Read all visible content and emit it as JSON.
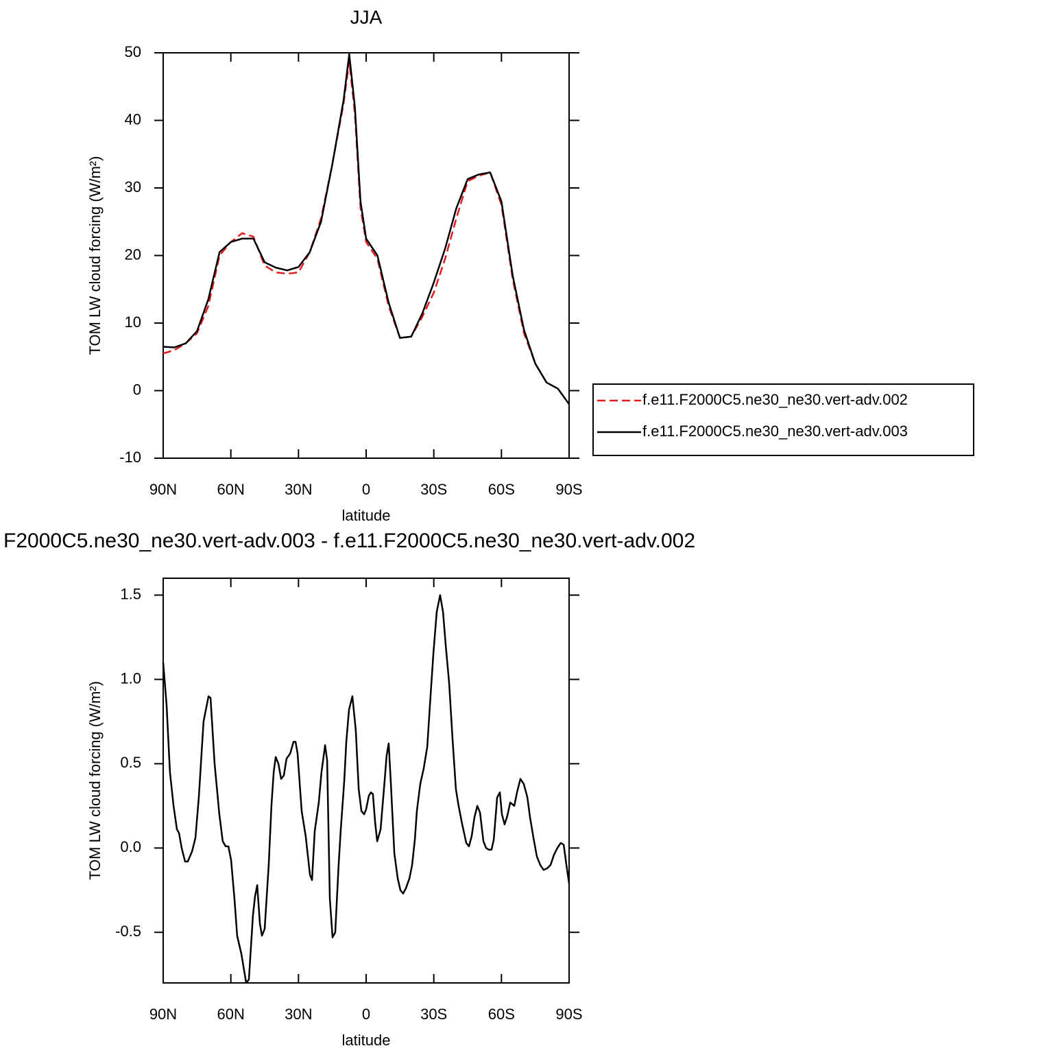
{
  "chart_data": [
    {
      "type": "line",
      "title": "JJA",
      "xlabel": "latitude",
      "ylabel": "TOM LW cloud forcing (W/m²)",
      "x": [
        90,
        85,
        80,
        75,
        70,
        65,
        60,
        55,
        50,
        45,
        40,
        35,
        30,
        25,
        20,
        15,
        10,
        7.5,
        5,
        2.5,
        0,
        -5,
        -10,
        -15,
        -20,
        -25,
        -30,
        -35,
        -40,
        -45,
        -50,
        -55,
        -60,
        -65,
        -70,
        -75,
        -80,
        -85,
        -90
      ],
      "xlim": [
        90,
        -90
      ],
      "xticks": [
        {
          "value": 90,
          "label": "90N"
        },
        {
          "value": 60,
          "label": "60N"
        },
        {
          "value": 30,
          "label": "30N"
        },
        0,
        {
          "value": -30,
          "label": "30S"
        },
        {
          "value": -60,
          "label": "60S"
        },
        {
          "value": -90,
          "label": "90S"
        }
      ],
      "ylim": [
        -10,
        50
      ],
      "yticks": [
        -10,
        0,
        10,
        20,
        30,
        40,
        50
      ],
      "legend": "right",
      "series": [
        {
          "name": "f.e11.F2000C5.ne30_ne30.vert-adv.002",
          "color": "#e41a1c",
          "dash": true,
          "values": [
            5.5,
            6.0,
            7.0,
            8.5,
            12.5,
            20,
            22,
            23.3,
            22.8,
            18.5,
            17.5,
            17.3,
            17.5,
            20.5,
            25.5,
            33.5,
            42.5,
            48.8,
            41,
            27,
            22,
            19.5,
            12.5,
            7.8,
            8,
            11,
            14.5,
            19.5,
            25.5,
            31,
            31.8,
            32.3,
            27.5,
            16.5,
            8.5,
            4,
            1.2,
            0.3,
            -2
          ]
        },
        {
          "name": "f.e11.F2000C5.ne30_ne30.vert-adv.003",
          "color": "#000000",
          "dash": false,
          "values": [
            6.5,
            6.4,
            7.0,
            8.8,
            13.5,
            20.5,
            22,
            22.5,
            22.5,
            19,
            18.2,
            17.8,
            18.3,
            20.5,
            25,
            33.5,
            43,
            49.8,
            42,
            28,
            22.5,
            20,
            13,
            7.8,
            8,
            11.5,
            16,
            21,
            27,
            31.3,
            32,
            32.3,
            28,
            17,
            9,
            4,
            1.2,
            0.3,
            -2
          ]
        }
      ]
    },
    {
      "type": "line",
      "title": "F2000C5.ne30_ne30.vert-adv.003 - f.e11.F2000C5.ne30_ne30.vert-adv.002",
      "xlabel": "latitude",
      "ylabel": "TOM LW cloud forcing (W/m²)",
      "x": [
        90,
        88.5,
        87.0,
        85.4,
        83.9,
        83.0,
        81.8,
        80.3,
        79.1,
        77.2,
        75.7,
        74.2,
        72.1,
        69.9,
        69.0,
        67.2,
        65.1,
        63.6,
        62.3,
        61.1,
        59.9,
        58.4,
        57.2,
        55.3,
        53.2,
        52.0,
        50.2,
        49.3,
        48.3,
        47.1,
        46.2,
        45.0,
        43.2,
        42.0,
        41.0,
        40.1,
        38.9,
        37.7,
        36.5,
        35.3,
        33.7,
        32.2,
        31.3,
        30.4,
        28.6,
        26.8,
        24.9,
        24.0,
        22.8,
        21.0,
        19.8,
        18.2,
        17.3,
        16.1,
        14.9,
        13.7,
        12.2,
        11.3,
        9.7,
        8.8,
        7.6,
        6.1,
        4.6,
        3.3,
        2.1,
        0.9,
        0,
        -1.2,
        -2.1,
        -3.0,
        -4.0,
        -4.9,
        -6.4,
        -7.9,
        -9.1,
        -10.0,
        -10.9,
        -12.5,
        -14.0,
        -15.2,
        -16.4,
        -17.6,
        -19.2,
        -20.4,
        -21.6,
        -22.5,
        -24.0,
        -25.5,
        -27.1,
        -28.3,
        -29.8,
        -31.3,
        -32.8,
        -34.1,
        -35.3,
        -36.8,
        -38.3,
        -39.8,
        -41.0,
        -42.6,
        -44.4,
        -45.6,
        -46.8,
        -48.0,
        -49.3,
        -50.5,
        -52.0,
        -53.2,
        -54.4,
        -55.6,
        -56.6,
        -58.1,
        -59.3,
        -60.2,
        -61.4,
        -62.6,
        -63.9,
        -65.7,
        -66.9,
        -68.4,
        -69.9,
        -71.5,
        -72.7,
        -74.2,
        -75.7,
        -77.2,
        -78.7,
        -80.3,
        -81.8,
        -83.3,
        -84.8,
        -86.3,
        -87.6,
        -88.8,
        -90
      ],
      "xlim": [
        90,
        -90
      ],
      "xticks": [
        {
          "value": 90,
          "label": "90N"
        },
        {
          "value": 60,
          "label": "60N"
        },
        {
          "value": 30,
          "label": "30N"
        },
        0,
        {
          "value": -30,
          "label": "30S"
        },
        {
          "value": -60,
          "label": "60S"
        },
        {
          "value": -90,
          "label": "90S"
        }
      ],
      "ylim": [
        -0.8,
        1.6
      ],
      "yticks": [
        -0.5,
        {
          "value": 0,
          "label": "0.0"
        },
        0.5,
        {
          "value": 1,
          "label": "1.0"
        },
        1.5
      ],
      "color": "#000000",
      "values": [
        1.1,
        0.85,
        0.45,
        0.25,
        0.11,
        0.09,
        0.0,
        -0.08,
        -0.08,
        -0.02,
        0.06,
        0.3,
        0.75,
        0.9,
        0.89,
        0.5,
        0.2,
        0.04,
        0.01,
        0.01,
        -0.07,
        -0.3,
        -0.52,
        -0.63,
        -0.8,
        -0.78,
        -0.4,
        -0.29,
        -0.22,
        -0.45,
        -0.52,
        -0.48,
        -0.1,
        0.25,
        0.45,
        0.54,
        0.5,
        0.41,
        0.43,
        0.53,
        0.56,
        0.63,
        0.63,
        0.56,
        0.22,
        0.07,
        -0.16,
        -0.19,
        0.1,
        0.27,
        0.45,
        0.61,
        0.52,
        -0.3,
        -0.53,
        -0.5,
        -0.1,
        0.1,
        0.4,
        0.63,
        0.82,
        0.9,
        0.7,
        0.35,
        0.22,
        0.2,
        0.23,
        0.31,
        0.33,
        0.32,
        0.15,
        0.04,
        0.11,
        0.35,
        0.55,
        0.62,
        0.4,
        -0.03,
        -0.18,
        -0.25,
        -0.27,
        -0.24,
        -0.18,
        -0.1,
        0.05,
        0.22,
        0.38,
        0.47,
        0.6,
        0.85,
        1.15,
        1.4,
        1.5,
        1.4,
        1.2,
        0.98,
        0.65,
        0.35,
        0.25,
        0.14,
        0.03,
        0.01,
        0.07,
        0.18,
        0.25,
        0.21,
        0.04,
        0.0,
        -0.01,
        -0.01,
        0.05,
        0.3,
        0.33,
        0.2,
        0.14,
        0.19,
        0.27,
        0.25,
        0.33,
        0.41,
        0.38,
        0.3,
        0.18,
        0.06,
        -0.05,
        -0.1,
        -0.13,
        -0.12,
        -0.1,
        -0.04,
        0.0,
        0.03,
        0.02,
        -0.1,
        -0.21
      ]
    }
  ]
}
